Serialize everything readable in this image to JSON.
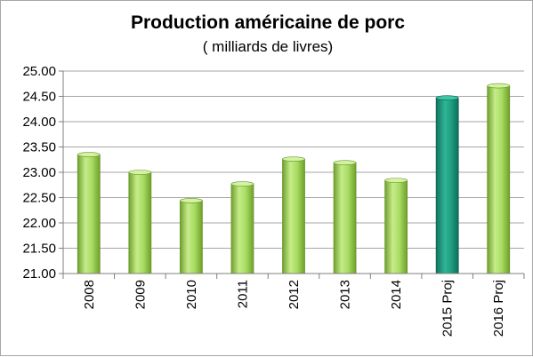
{
  "chart_data": {
    "type": "bar",
    "title": "Production américaine de porc",
    "subtitle": "( milliards de livres)",
    "categories": [
      "2008",
      "2009",
      "2010",
      "2011",
      "2012",
      "2013",
      "2014",
      "2015 Proj",
      "2016 Proj"
    ],
    "values": [
      23.35,
      23.0,
      22.44,
      22.77,
      23.26,
      23.19,
      22.84,
      24.47,
      24.71
    ],
    "ylim": [
      21.0,
      25.0
    ],
    "yticks": [
      "21.00",
      "21.50",
      "22.00",
      "22.50",
      "23.00",
      "23.50",
      "24.00",
      "24.50",
      "25.00"
    ],
    "grid": true,
    "legend": "none",
    "colors": {
      "bar": "#92d050",
      "bar_highlight": "#1f9a7c",
      "highlight_index": 7,
      "grid": "#a6a6a6",
      "axis": "#7f7f7f"
    }
  }
}
